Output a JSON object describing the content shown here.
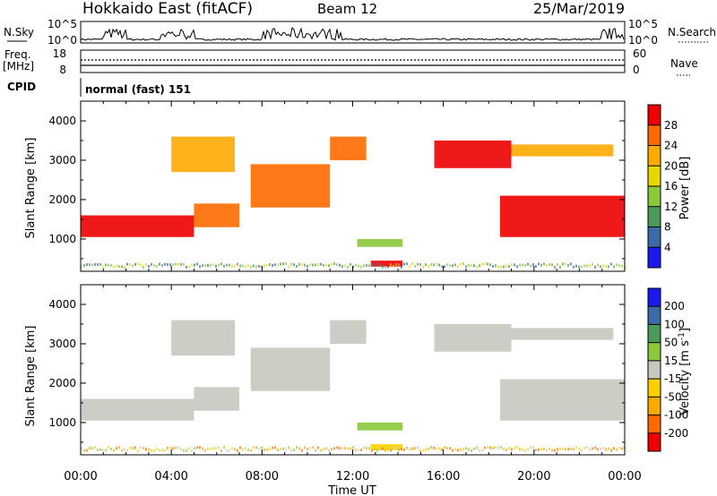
{
  "header": {
    "title": "Hokkaido East (fitACF)",
    "beam": "Beam 12",
    "date": "25/Mar/2019"
  },
  "strips": {
    "nsky_label": "N.Sky",
    "nsearch_label": "N.Search",
    "nsky_ticks": [
      "10^5",
      "10^0"
    ],
    "nsky_ticks_right": [
      "10^5",
      "10^0"
    ],
    "freq_label_1": "Freq.",
    "freq_label_2": "[MHz]",
    "freq_ticks": [
      "18",
      "8"
    ],
    "nave_label": "Nave",
    "nave_ticks": [
      "60",
      "0"
    ],
    "cpid_label": "CPID",
    "cpid_text": "normal (fast) 151"
  },
  "chart_data": [
    {
      "type": "heatmap",
      "quantity": "Power",
      "ylabel": "Slant Range [km]",
      "ylim": [
        180,
        4500
      ],
      "yticks": [
        "1000",
        "2000",
        "3000",
        "4000"
      ],
      "colorbar_label": "Power [dB]",
      "colorbar_ticks": [
        "28",
        "24",
        "20",
        "16",
        "12",
        "8",
        "4"
      ],
      "colorbar_colors": [
        "#ee0000",
        "#ff6a00",
        "#ffaa00",
        "#e8d800",
        "#8cc83c",
        "#4a9a5a",
        "#3a6aa8",
        "#1a1aee"
      ],
      "regions": [
        {
          "t0": 0.0,
          "t1": 5.0,
          "r0": 1050,
          "r1": 1600,
          "level": 28
        },
        {
          "t0": 5.0,
          "t1": 7.0,
          "r0": 1300,
          "r1": 1900,
          "level": 26
        },
        {
          "t0": 4.0,
          "t1": 6.8,
          "r0": 2700,
          "r1": 3600,
          "level": 22
        },
        {
          "t0": 7.5,
          "t1": 11.0,
          "r0": 1800,
          "r1": 2900,
          "level": 24
        },
        {
          "t0": 11.0,
          "t1": 12.6,
          "r0": 3000,
          "r1": 3600,
          "level": 26
        },
        {
          "t0": 15.6,
          "t1": 19.0,
          "r0": 2800,
          "r1": 3500,
          "level": 28
        },
        {
          "t0": 18.5,
          "t1": 24.0,
          "r0": 1050,
          "r1": 2100,
          "level": 28
        },
        {
          "t0": 19.0,
          "t1": 23.5,
          "r0": 3100,
          "r1": 3400,
          "level": 22
        },
        {
          "t0": 12.2,
          "t1": 14.2,
          "r0": 800,
          "r1": 1000,
          "level": 14
        },
        {
          "t0": 12.8,
          "t1": 14.2,
          "r0": 300,
          "r1": 450,
          "level": 28
        }
      ]
    },
    {
      "type": "heatmap",
      "quantity": "Velocity",
      "ylabel": "Slant Range [km]",
      "ylim": [
        180,
        4500
      ],
      "yticks": [
        "1000",
        "2000",
        "3000",
        "4000"
      ],
      "colorbar_label": "Velocity [m s",
      "colorbar_label_sup": "-1",
      "colorbar_label_end": "]",
      "colorbar_ticks": [
        "200",
        "100",
        "50",
        "15",
        "-15",
        "-50",
        "-100",
        "-200"
      ],
      "colorbar_colors": [
        "#1a1aee",
        "#3a6aa8",
        "#4a9a5a",
        "#8cc83c",
        "#c8c8c0",
        "#ffd000",
        "#ffaa00",
        "#ff6a00",
        "#ee0000"
      ],
      "regions": [
        {
          "t0": 0.0,
          "t1": 5.0,
          "r0": 1050,
          "r1": 1600,
          "level": 0
        },
        {
          "t0": 5.0,
          "t1": 7.0,
          "r0": 1300,
          "r1": 1900,
          "level": 0
        },
        {
          "t0": 4.0,
          "t1": 6.8,
          "r0": 2700,
          "r1": 3600,
          "level": 0
        },
        {
          "t0": 7.5,
          "t1": 11.0,
          "r0": 1800,
          "r1": 2900,
          "level": 0
        },
        {
          "t0": 11.0,
          "t1": 12.6,
          "r0": 3000,
          "r1": 3600,
          "level": 0
        },
        {
          "t0": 15.6,
          "t1": 19.0,
          "r0": 2800,
          "r1": 3500,
          "level": 0
        },
        {
          "t0": 18.5,
          "t1": 24.0,
          "r0": 1050,
          "r1": 2100,
          "level": 0
        },
        {
          "t0": 19.0,
          "t1": 23.5,
          "r0": 3100,
          "r1": 3400,
          "level": 0
        },
        {
          "t0": 12.2,
          "t1": 14.2,
          "r0": 800,
          "r1": 1000,
          "level": 30
        },
        {
          "t0": 12.8,
          "t1": 14.2,
          "r0": 300,
          "r1": 450,
          "level": -30
        }
      ]
    }
  ],
  "xaxis": {
    "ticks": [
      "00:00",
      "04:00",
      "08:00",
      "12:00",
      "16:00",
      "20:00",
      "00:00"
    ],
    "label": "Time UT",
    "xlim": [
      0,
      24
    ]
  }
}
